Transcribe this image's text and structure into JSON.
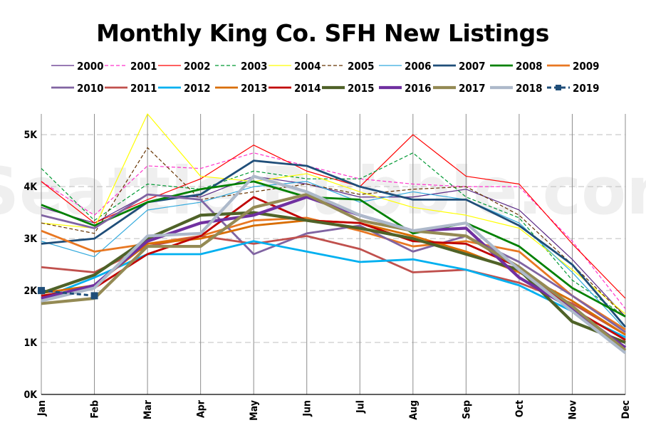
{
  "chart_data": {
    "type": "line",
    "title": "Monthly King Co. SFH New Listings",
    "watermark": "Seattle Bubble.com",
    "xlabel": "",
    "ylabel": "",
    "categories": [
      "Jan",
      "Feb",
      "Mar",
      "Apr",
      "May",
      "Jun",
      "Jul",
      "Aug",
      "Sep",
      "Oct",
      "Nov",
      "Dec"
    ],
    "ylim": [
      0,
      5400
    ],
    "yticks": [
      0,
      1000,
      2000,
      3000,
      4000,
      5000
    ],
    "ytick_labels": [
      "0K",
      "1K",
      "2K",
      "3K",
      "4K",
      "5K"
    ],
    "grid": true,
    "legend_position": "top",
    "series": [
      {
        "name": "2000",
        "color": "#5b2a86",
        "style": "solid",
        "width": 1.2,
        "values": [
          3600,
          3300,
          3850,
          3800,
          4200,
          4050,
          3800,
          3800,
          3950,
          3550,
          2600,
          1500
        ]
      },
      {
        "name": "2001",
        "color": "#ff33cc",
        "style": "dashed",
        "width": 1.2,
        "values": [
          4100,
          3450,
          4400,
          4350,
          4650,
          4400,
          4150,
          4050,
          4000,
          4000,
          2950,
          1650
        ]
      },
      {
        "name": "2002",
        "color": "#ff0000",
        "style": "solid",
        "width": 1.2,
        "values": [
          4100,
          3300,
          3750,
          4150,
          4800,
          4300,
          4000,
          5000,
          4200,
          4050,
          2900,
          1850
        ]
      },
      {
        "name": "2003",
        "color": "#009933",
        "style": "dashed",
        "width": 1.2,
        "values": [
          4350,
          3350,
          4050,
          3950,
          4300,
          4150,
          4150,
          4650,
          3800,
          3400,
          2200,
          1500
        ]
      },
      {
        "name": "2004",
        "color": "#ffff00",
        "style": "solid",
        "width": 1.2,
        "values": [
          3300,
          3200,
          5400,
          4200,
          4100,
          4250,
          3900,
          3600,
          3450,
          3200,
          2400,
          1550
        ]
      },
      {
        "name": "2005",
        "color": "#663300",
        "style": "dashed",
        "width": 1.2,
        "values": [
          3300,
          3100,
          4750,
          3750,
          3900,
          4050,
          3850,
          3950,
          4000,
          3450,
          2500,
          1500
        ]
      },
      {
        "name": "2006",
        "color": "#33aadd",
        "style": "solid",
        "width": 1.2,
        "values": [
          2950,
          2650,
          3550,
          3700,
          4000,
          4100,
          3700,
          3900,
          3750,
          3300,
          2350,
          1250
        ]
      },
      {
        "name": "2007",
        "color": "#1f4e79",
        "style": "solid",
        "width": 2.8,
        "values": [
          2900,
          3000,
          3700,
          3850,
          4500,
          4400,
          4000,
          3750,
          3750,
          3250,
          2500,
          1300
        ]
      },
      {
        "name": "2008",
        "color": "#008000",
        "style": "solid",
        "width": 2.8,
        "values": [
          3650,
          3250,
          3700,
          3950,
          4100,
          3800,
          3750,
          3100,
          3300,
          2850,
          2050,
          1500
        ]
      },
      {
        "name": "2009",
        "color": "#e87722",
        "style": "solid",
        "width": 2.8,
        "values": [
          3150,
          2750,
          2900,
          3050,
          3350,
          3400,
          3150,
          2850,
          2950,
          2750,
          1900,
          1250
        ]
      },
      {
        "name": "2010",
        "color": "#8064a2",
        "style": "solid",
        "width": 2.8,
        "values": [
          3450,
          3200,
          3850,
          3750,
          2700,
          3100,
          3250,
          2750,
          3050,
          2550,
          1900,
          1200
        ]
      },
      {
        "name": "2011",
        "color": "#c0504d",
        "style": "solid",
        "width": 2.8,
        "values": [
          2450,
          2350,
          2850,
          3050,
          2900,
          3050,
          2800,
          2350,
          2400,
          2150,
          1750,
          1150
        ]
      },
      {
        "name": "2012",
        "color": "#00b0f0",
        "style": "solid",
        "width": 2.8,
        "values": [
          1850,
          2250,
          2700,
          2700,
          2950,
          2750,
          2550,
          2600,
          2400,
          2100,
          1600,
          1100
        ]
      },
      {
        "name": "2013",
        "color": "#d96d00",
        "style": "solid",
        "width": 2.8,
        "values": [
          1950,
          2100,
          2900,
          3000,
          3250,
          3350,
          3300,
          3050,
          2750,
          2350,
          1800,
          1150
        ]
      },
      {
        "name": "2014",
        "color": "#c00000",
        "style": "solid",
        "width": 2.8,
        "values": [
          1900,
          2050,
          2700,
          3050,
          3800,
          3350,
          3300,
          2950,
          2900,
          2450,
          1650,
          1050
        ]
      },
      {
        "name": "2015",
        "color": "#4f6228",
        "style": "solid",
        "width": 4.2,
        "values": [
          1950,
          2300,
          3000,
          3450,
          3500,
          3350,
          3200,
          3000,
          2700,
          2400,
          1400,
          1000
        ]
      },
      {
        "name": "2016",
        "color": "#7030a0",
        "style": "solid",
        "width": 4.2,
        "values": [
          1850,
          2100,
          2950,
          3300,
          3450,
          3800,
          3450,
          3150,
          3200,
          2250,
          1650,
          900
        ]
      },
      {
        "name": "2017",
        "color": "#948a54",
        "style": "solid",
        "width": 4.2,
        "values": [
          1750,
          1850,
          2850,
          2850,
          3600,
          3850,
          3350,
          3150,
          3050,
          2450,
          1700,
          850
        ]
      },
      {
        "name": "2018",
        "color": "#adb9ca",
        "style": "solid",
        "width": 4.2,
        "values": [
          1800,
          2050,
          3050,
          3100,
          4200,
          3900,
          3450,
          3150,
          3300,
          2400,
          1600,
          800
        ]
      },
      {
        "name": "2019",
        "color": "#1f4e79",
        "style": "dashed-marker",
        "width": 3,
        "values": [
          2000,
          1900,
          null,
          null,
          null,
          null,
          null,
          null,
          null,
          null,
          null,
          null
        ]
      }
    ]
  }
}
